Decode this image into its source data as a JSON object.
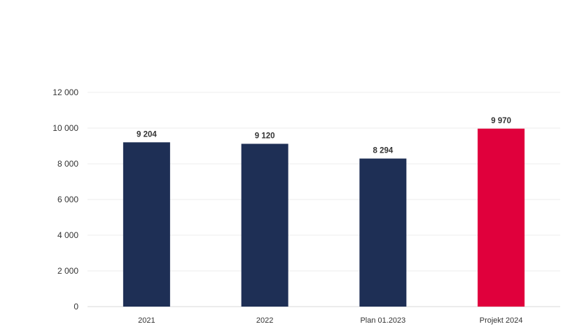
{
  "chart_data": {
    "type": "bar",
    "title": "",
    "xlabel": "",
    "ylabel": "",
    "categories": [
      "2021",
      "2022",
      "Plan 01.2023",
      "Projekt 2024"
    ],
    "values": [
      9204,
      9120,
      8294,
      9970
    ],
    "value_labels": [
      "9 204",
      "9 120",
      "8 294",
      "9 970"
    ],
    "ylim": [
      0,
      12000
    ],
    "yticks": [
      0,
      2000,
      4000,
      6000,
      8000,
      10000,
      12000
    ],
    "ytick_labels": [
      "0",
      "2 000",
      "4 000",
      "6 000",
      "8 000",
      "10 000",
      "12 000"
    ],
    "grid": true,
    "legend": "none",
    "colors": [
      "#1e2f55",
      "#1e2f55",
      "#1e2f55",
      "#e0003c"
    ]
  }
}
